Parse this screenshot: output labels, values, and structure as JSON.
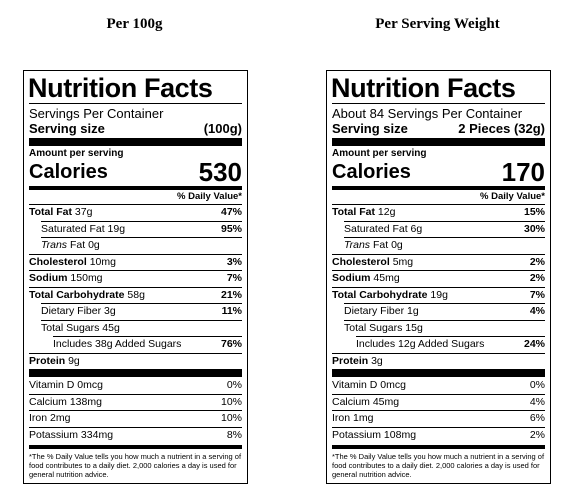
{
  "columns": [
    {
      "heading": "Per 100g",
      "label": {
        "title": "Nutrition Facts",
        "servings_per_container": "Servings Per Container",
        "serving_size_label": "Serving size",
        "serving_size_value": "(100g)",
        "amount_per_serving": "Amount per serving",
        "calories_label": "Calories",
        "calories_value": "530",
        "daily_value_header": "% Daily Value*",
        "total_fat": {
          "name": "Total Fat",
          "amount": "37g",
          "dv": "47%"
        },
        "saturated_fat": {
          "name": "Saturated Fat 19g",
          "dv": "95%"
        },
        "trans_fat": {
          "name": "Trans",
          "rest": " Fat 0g"
        },
        "cholesterol": {
          "name": "Cholesterol",
          "amount": "10mg",
          "dv": "3%"
        },
        "sodium": {
          "name": "Sodium",
          "amount": "150mg",
          "dv": "7%"
        },
        "total_carbohydrate": {
          "name": "Total Carbohydrate",
          "amount": "58g",
          "dv": "21%"
        },
        "dietary_fiber": {
          "name": "Dietary Fiber 3g",
          "dv": "11%"
        },
        "total_sugars": {
          "name": "Total Sugars 45g"
        },
        "added_sugars": {
          "name": "Includes 38g Added Sugars",
          "dv": "76%"
        },
        "protein": {
          "name": "Protein",
          "amount": "9g"
        },
        "vitamins": [
          {
            "name": "Vitamin D 0mcg",
            "dv": "0%"
          },
          {
            "name": "Calcium 138mg",
            "dv": "10%"
          },
          {
            "name": "Iron 2mg",
            "dv": "10%"
          },
          {
            "name": "Potassium 334mg",
            "dv": "8%"
          }
        ],
        "footnote": "*The % Daily Value tells you how much a nutrient in a serving of food contributes to a daily diet. 2,000 calories a day is used for general nutrition advice."
      }
    },
    {
      "heading": "Per Serving Weight",
      "label": {
        "title": "Nutrition Facts",
        "servings_per_container": "About 84 Servings Per Container",
        "serving_size_label": "Serving size",
        "serving_size_value": "2 Pieces (32g)",
        "amount_per_serving": "Amount per serving",
        "calories_label": "Calories",
        "calories_value": "170",
        "daily_value_header": "% Daily Value*",
        "total_fat": {
          "name": "Total Fat",
          "amount": "12g",
          "dv": "15%"
        },
        "saturated_fat": {
          "name": "Saturated Fat 6g",
          "dv": "30%"
        },
        "trans_fat": {
          "name": "Trans",
          "rest": " Fat 0g"
        },
        "cholesterol": {
          "name": "Cholesterol",
          "amount": "5mg",
          "dv": "2%"
        },
        "sodium": {
          "name": "Sodium",
          "amount": "45mg",
          "dv": "2%"
        },
        "total_carbohydrate": {
          "name": "Total Carbohydrate",
          "amount": "19g",
          "dv": "7%"
        },
        "dietary_fiber": {
          "name": "Dietary Fiber 1g",
          "dv": "4%"
        },
        "total_sugars": {
          "name": "Total Sugars 15g"
        },
        "added_sugars": {
          "name": "Includes 12g Added Sugars",
          "dv": "24%"
        },
        "protein": {
          "name": "Protein",
          "amount": "3g"
        },
        "vitamins": [
          {
            "name": "Vitamin D 0mcg",
            "dv": "0%"
          },
          {
            "name": "Calcium 45mg",
            "dv": "4%"
          },
          {
            "name": "Iron 1mg",
            "dv": "6%"
          },
          {
            "name": "Potassium 108mg",
            "dv": "2%"
          }
        ],
        "footnote": "*The % Daily Value tells you how much a nutrient in a serving of food contributes to a daily diet. 2,000 calories a day is used for general nutrition advice."
      }
    }
  ]
}
